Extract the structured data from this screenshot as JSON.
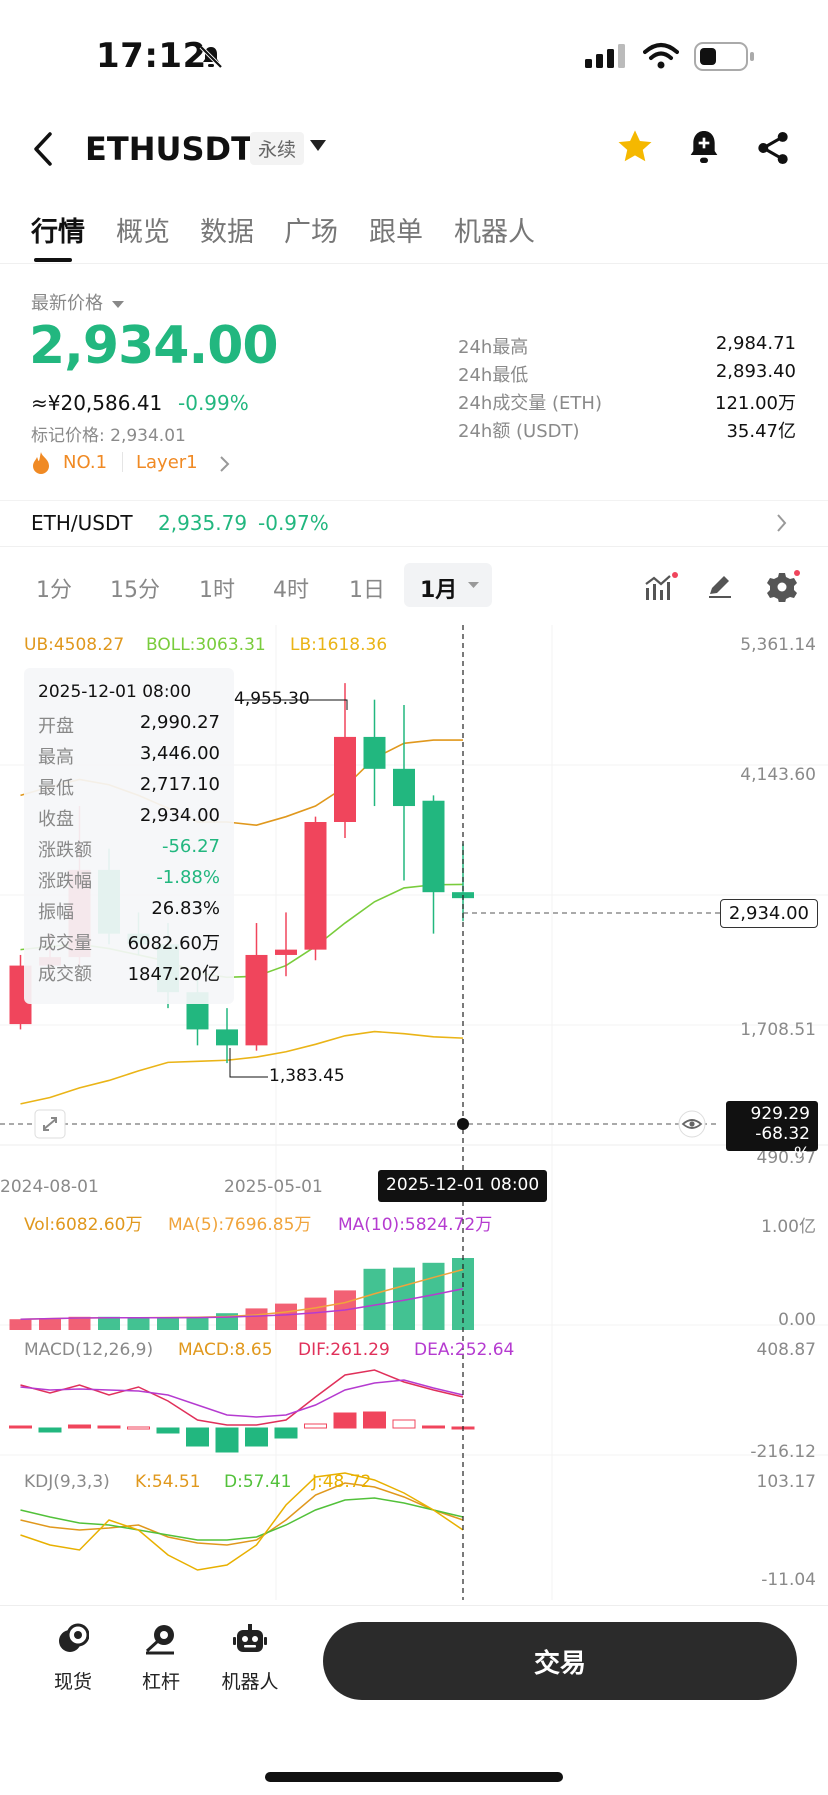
{
  "status": {
    "time": "17:12"
  },
  "header": {
    "symbol": "ETHUSDT",
    "type_label": "永续"
  },
  "tabs": [
    {
      "label": "行情",
      "active": true
    },
    {
      "label": "概览"
    },
    {
      "label": "数据"
    },
    {
      "label": "广场"
    },
    {
      "label": "跟单"
    },
    {
      "label": "机器人"
    }
  ],
  "price": {
    "latest_label": "最新价格",
    "last": "2,934.00",
    "cny": "≈¥20,586.41",
    "change_pct": "-0.99%",
    "mark_label": "标记价格: 2,934.01",
    "rank": "NO.1",
    "tag": "Layer1"
  },
  "stats": [
    {
      "label": "24h最高",
      "value": "2,984.71"
    },
    {
      "label": "24h最低",
      "value": "2,893.40"
    },
    {
      "label": "24h成交量 (ETH)",
      "value": "121.00万"
    },
    {
      "label": "24h额 (USDT)",
      "value": "35.47亿"
    }
  ],
  "spot": {
    "pair": "ETH/USDT",
    "price": "2,935.79",
    "change": "-0.97%"
  },
  "timeframes": [
    "1分",
    "15分",
    "1时",
    "4时",
    "1日",
    "1月"
  ],
  "active_timeframe": "1月",
  "boll_legend": {
    "ub": "UB:4508.27",
    "boll": "BOLL:3063.31",
    "lb": "LB:1618.36"
  },
  "tooltip": {
    "date": "2025-12-01 08:00",
    "rows": [
      {
        "k": "开盘",
        "v": "2,990.27",
        "color": "#111"
      },
      {
        "k": "最高",
        "v": "3,446.00",
        "color": "#111"
      },
      {
        "k": "最低",
        "v": "2,717.10",
        "color": "#111"
      },
      {
        "k": "收盘",
        "v": "2,934.00",
        "color": "#111"
      },
      {
        "k": "涨跌额",
        "v": "-56.27",
        "color": "#22b77f"
      },
      {
        "k": "涨跌幅",
        "v": "-1.88%",
        "color": "#22b77f"
      },
      {
        "k": "振幅",
        "v": "26.83%",
        "color": "#111"
      },
      {
        "k": "成交量",
        "v": "6082.60万",
        "color": "#111"
      },
      {
        "k": "成交额",
        "v": "1847.20亿",
        "color": "#111"
      }
    ]
  },
  "main_axis": {
    "top": "5,361.14",
    "upper": "4,143.60",
    "cur": "2,934.00",
    "lower": "1,708.51",
    "bottom": "490.97"
  },
  "crosshair": {
    "price": "929.29",
    "pct": "-68.32 %",
    "date": "2025-12-01 08:00"
  },
  "annotations": {
    "high": "4,955.30",
    "low": "1,383.45"
  },
  "x_labels": [
    "2024-08-01",
    "2025-05-01"
  ],
  "vol_legend": {
    "vol": "Vol:6082.60万",
    "ma5": "MA(5):7696.85万",
    "ma10": "MA(10):5824.72万"
  },
  "vol_axis": {
    "top": "1.00亿",
    "bottom": "0.00"
  },
  "macd_legend": {
    "name": "MACD(12,26,9)",
    "macd": "MACD:8.65",
    "dif": "DIF:261.29",
    "dea": "DEA:252.64"
  },
  "macd_axis": {
    "top": "408.87",
    "bottom": "-216.12"
  },
  "kdj_legend": {
    "name": "KDJ(9,3,3)",
    "k": "K:54.51",
    "d": "D:57.41",
    "j": "J:48.72"
  },
  "kdj_axis": {
    "top": "103.17",
    "bottom": "-11.04"
  },
  "bottom_nav": [
    {
      "label": "现货",
      "icon": "spot-icon"
    },
    {
      "label": "杠杆",
      "icon": "margin-icon"
    },
    {
      "label": "机器人",
      "icon": "robot-icon"
    }
  ],
  "trade_label": "交易",
  "colors": {
    "up": "#22b77f",
    "down": "#f0455c",
    "ub": "#e0981d",
    "boll": "#79cc3c",
    "lb": "#eab417"
  },
  "candles": [
    {
      "o": 1750,
      "c": 2300,
      "h": 2400,
      "l": 1700
    },
    {
      "o": 2300,
      "c": 2380,
      "h": 2600,
      "l": 2200
    },
    {
      "o": 2380,
      "c": 3200,
      "h": 3800,
      "l": 2300
    },
    {
      "o": 3200,
      "c": 2600,
      "h": 3400,
      "l": 2500
    },
    {
      "o": 2600,
      "c": 2500,
      "h": 2800,
      "l": 2400
    },
    {
      "o": 2500,
      "c": 2050,
      "h": 2700,
      "l": 1900
    },
    {
      "o": 2050,
      "c": 1700,
      "h": 2200,
      "l": 1550
    },
    {
      "o": 1700,
      "c": 1550,
      "h": 1900,
      "l": 1383.45
    },
    {
      "o": 1550,
      "c": 2400,
      "h": 2700,
      "l": 1500
    },
    {
      "o": 2400,
      "c": 2450,
      "h": 2800,
      "l": 2200
    },
    {
      "o": 2450,
      "c": 3650,
      "h": 3700,
      "l": 2350
    },
    {
      "o": 3650,
      "c": 4450,
      "h": 4955.3,
      "l": 3500
    },
    {
      "o": 4450,
      "c": 4150,
      "h": 4800,
      "l": 3800
    },
    {
      "o": 4150,
      "c": 3800,
      "h": 4750,
      "l": 3100
    },
    {
      "o": 3850,
      "c": 2990,
      "h": 3900,
      "l": 2600
    },
    {
      "o": 2990.27,
      "c": 2934,
      "h": 3446,
      "l": 2717.1
    }
  ]
}
